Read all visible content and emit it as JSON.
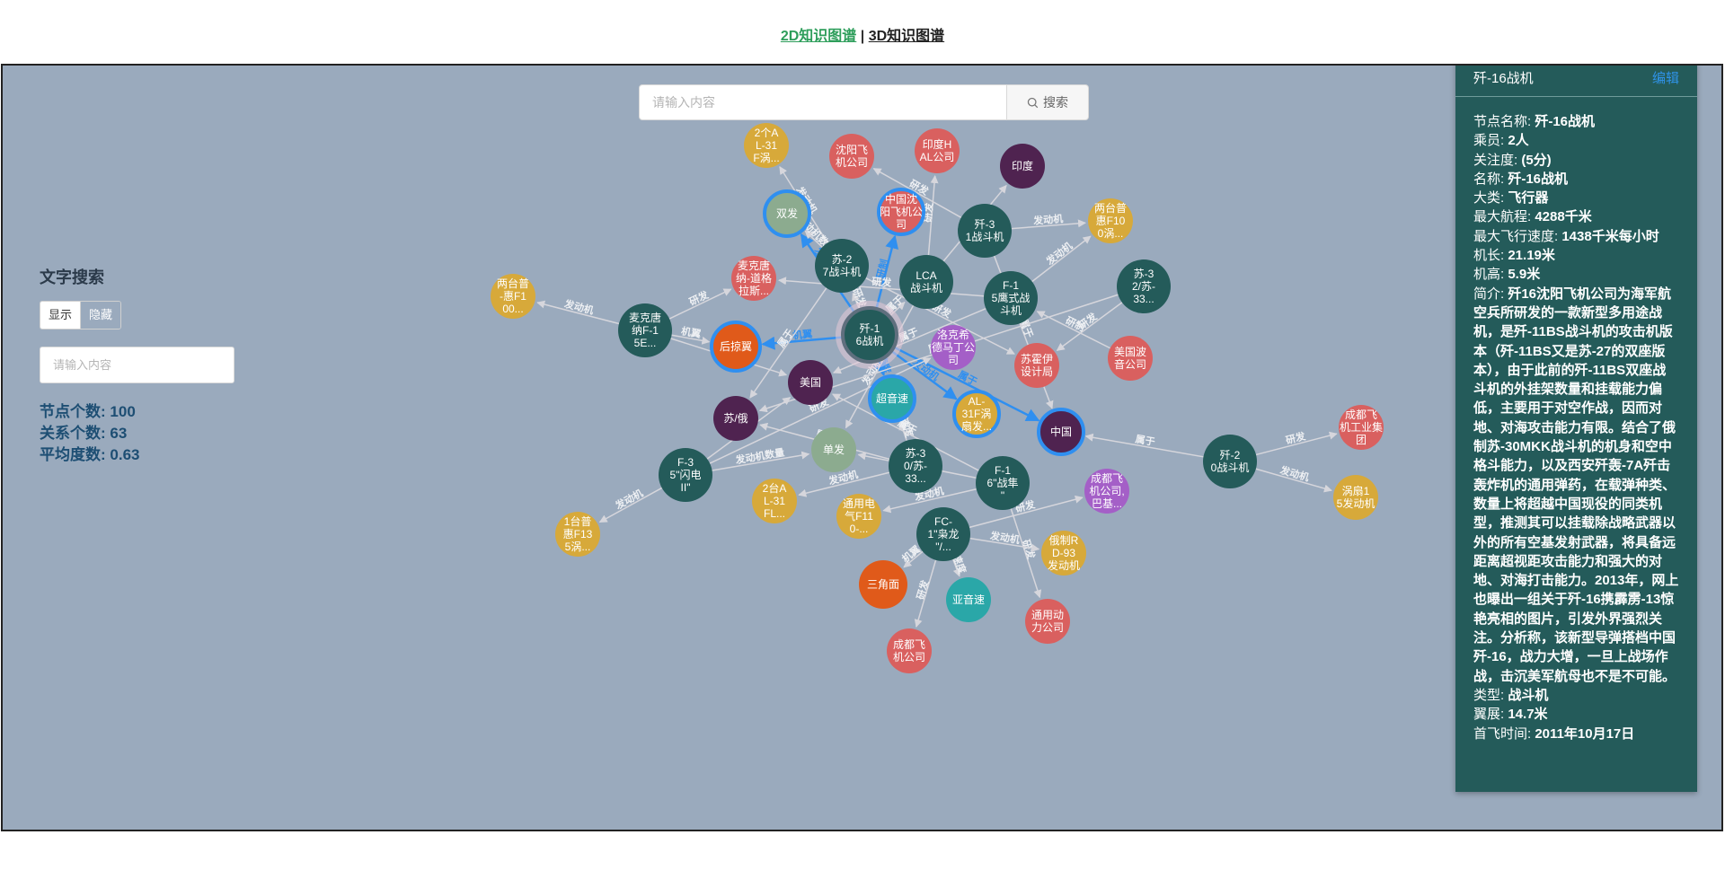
{
  "nav": {
    "link_2d": "2D知识图谱",
    "separator": " | ",
    "link_3d": "3D知识图谱"
  },
  "search": {
    "placeholder": "请输入内容",
    "button_label": "搜索",
    "icon": "search-icon"
  },
  "left_panel": {
    "title": "文字搜索",
    "show_label": "显示",
    "hide_label": "隐藏",
    "input_placeholder": "请输入内容",
    "stats": [
      {
        "label": "节点个数:",
        "value": "100"
      },
      {
        "label": "关系个数:",
        "value": "63"
      },
      {
        "label": "平均度数:",
        "value": "0.63"
      }
    ]
  },
  "info_panel": {
    "title": "歼-16战机",
    "edit_label": "编辑",
    "fields": [
      {
        "k": "节点名称:",
        "v": "歼-16战机"
      },
      {
        "k": "乘员:",
        "v": "2人"
      },
      {
        "k": "关注度:",
        "v": "(5分)"
      },
      {
        "k": "名称:",
        "v": "歼-16战机"
      },
      {
        "k": "大类:",
        "v": "飞行器"
      },
      {
        "k": "最大航程:",
        "v": "4288千米"
      },
      {
        "k": "最大飞行速度:",
        "v": "1438千米每小时"
      },
      {
        "k": "机长:",
        "v": "21.19米"
      },
      {
        "k": "机高:",
        "v": "5.9米"
      },
      {
        "k": "简介:",
        "v": "歼16沈阳飞机公司为海军航空兵所研发的一款新型多用途战机，是歼-11BS战斗机的攻击机版本（歼-11BS又是苏-27的双座版本），由于此前的歼-11BS双座战斗机的外挂架数量和挂载能力偏低，主要用于对空作战，因而对地、对海攻击能力有限。结合了俄制苏-30MKK战斗机的机身和空中格斗能力，以及西安歼轰-7A歼击轰炸机的通用弹药，在载弹种类、数量上将超越中国现役的同类机型，推测其可以挂载除战略武器以外的所有空基发射武器，将具备远距离超视距攻击能力和强大的对地、对海打击能力。2013年，网上也曝出一组关于歼-16携霹雳-13惊艳亮相的图片，引发外界强烈关注。分析称，该新型导弹搭档中国歼-16，战力大增，一旦上战场作战，击沉美军航母也不是不可能。"
      },
      {
        "k": "类型:",
        "v": "战斗机"
      },
      {
        "k": "翼展:",
        "v": "14.7米"
      },
      {
        "k": "首飞时间:",
        "v": "2011年10月17日"
      }
    ]
  },
  "colors": {
    "graph_bg": "#9aaabd",
    "aircraft": "#245b5a",
    "company": "#d9605f",
    "engine": "#d7a93a",
    "country": "#4f2350",
    "feature": "#8cab8f",
    "speed": "#2aa7a8",
    "wing": "#e05a1a",
    "type": "#a45fc7",
    "highlight": "#2f8ff0",
    "edge": "#d6d6dc",
    "panel": "#245b5a",
    "link_2d": "#2e9e5b",
    "edit": "#2f93e8"
  },
  "graph": {
    "nodes": [
      {
        "id": "j16",
        "label": "歼-1\n6战机",
        "type": "aircraft",
        "center": true
      },
      {
        "id": "j16b",
        "label": "中国沈\n阳飞机公\n司",
        "type": "company",
        "hl": true
      },
      {
        "id": "doublecrew",
        "label": "双发",
        "type": "feature",
        "hl": true
      },
      {
        "id": "su27",
        "label": "苏-2\n7战斗机",
        "type": "aircraft"
      },
      {
        "id": "lca",
        "label": "LCA\n战斗机",
        "type": "aircraft"
      },
      {
        "id": "j31",
        "label": "歼-3\n1战斗机",
        "type": "aircraft"
      },
      {
        "id": "f15",
        "label": "F-1\n5鹰式战\n斗机",
        "type": "aircraft"
      },
      {
        "id": "su32",
        "label": "苏-3\n2/苏-\n33...",
        "type": "aircraft"
      },
      {
        "id": "mcdonnell",
        "label": "麦克唐\n纳-道格\n拉斯...",
        "type": "company"
      },
      {
        "id": "mcdf15",
        "label": "麦克唐\n纳F-1\n5E...",
        "type": "aircraft"
      },
      {
        "id": "swept",
        "label": "后掠翼",
        "type": "wing",
        "hl": true
      },
      {
        "id": "usa",
        "label": "美国",
        "type": "country"
      },
      {
        "id": "supersonic",
        "label": "超音速",
        "type": "speed",
        "hl": true
      },
      {
        "id": "lockheed",
        "label": "洛克希\n德马丁公\n司",
        "type": "type"
      },
      {
        "id": "sukhoi",
        "label": "苏霍伊\n设计局",
        "type": "company"
      },
      {
        "id": "boeing",
        "label": "美国波\n音公司",
        "type": "company"
      },
      {
        "id": "al31",
        "label": "AL-\n31F涡\n扇发...",
        "type": "engine",
        "hl": true
      },
      {
        "id": "china",
        "label": "中国",
        "type": "country",
        "hl": true
      },
      {
        "id": "sov",
        "label": "苏/俄",
        "type": "country"
      },
      {
        "id": "single",
        "label": "单发",
        "type": "feature"
      },
      {
        "id": "su30",
        "label": "苏-3\n0/苏-\n33...",
        "type": "aircraft"
      },
      {
        "id": "f16",
        "label": "F-1\n6\"战隼\n\"",
        "type": "aircraft"
      },
      {
        "id": "chengdu1",
        "label": "成都飞\n机公司,\n巴基...",
        "type": "type"
      },
      {
        "id": "f35",
        "label": "F-3\n5\"闪电\nII\"",
        "type": "aircraft"
      },
      {
        "id": "al31fl",
        "label": "2台A\nL-31\nFL...",
        "type": "engine"
      },
      {
        "id": "ge110",
        "label": "通用电\n气F11\n0-...",
        "type": "engine"
      },
      {
        "id": "fc1",
        "label": "FC-\n1\"枭龙\n\"/...",
        "type": "aircraft"
      },
      {
        "id": "rd93",
        "label": "俄制R\nD-93\n发动机",
        "type": "engine"
      },
      {
        "id": "triangle",
        "label": "三角面",
        "type": "wing"
      },
      {
        "id": "subsonic",
        "label": "亚音速",
        "type": "speed"
      },
      {
        "id": "gepower",
        "label": "通用动\n力公司",
        "type": "company"
      },
      {
        "id": "chengdu2",
        "label": "成都飞\n机公司",
        "type": "company"
      },
      {
        "id": "pw135",
        "label": "1台普\n惠F13\n5涡...",
        "type": "engine"
      },
      {
        "id": "pw100",
        "label": "两台普\n-惠F1\n00...",
        "type": "engine"
      },
      {
        "id": "al31f2",
        "label": "2个A\nL-31\nF涡...",
        "type": "engine"
      },
      {
        "id": "shenyang",
        "label": "沈阳飞\n机公司",
        "type": "company"
      },
      {
        "id": "hal",
        "label": "印度H\nAL公司",
        "type": "company"
      },
      {
        "id": "india",
        "label": "印度",
        "type": "country"
      },
      {
        "id": "pwf100b",
        "label": "两台普\n惠F10\n0涡...",
        "type": "engine"
      },
      {
        "id": "j20",
        "label": "歼-2\n0战斗机",
        "type": "aircraft"
      },
      {
        "id": "chengdugroup",
        "label": "成都飞\n机工业集\n团",
        "type": "company"
      },
      {
        "id": "ws15",
        "label": "涡扇1\n5发动机",
        "type": "engine"
      }
    ],
    "edges": [
      {
        "from": "j16",
        "to": "j16b",
        "label": "研制",
        "hl": true
      },
      {
        "from": "j16",
        "to": "doublecrew",
        "label": "发动机数量",
        "hl": true
      },
      {
        "from": "j16",
        "to": "swept",
        "label": "机翼",
        "hl": true
      },
      {
        "from": "j16",
        "to": "supersonic",
        "label": "速度",
        "hl": true
      },
      {
        "from": "j16",
        "to": "al31",
        "label": "发动机",
        "hl": true
      },
      {
        "from": "j16",
        "to": "china",
        "label": "属于",
        "hl": true
      },
      {
        "from": "su27",
        "to": "sov",
        "label": "属于"
      },
      {
        "from": "su27",
        "to": "al31f2",
        "label": "发动机"
      },
      {
        "from": "su27",
        "to": "doublecrew",
        "label": "发动机数量"
      },
      {
        "from": "su27",
        "to": "sukhoi",
        "label": "研发"
      },
      {
        "from": "lca",
        "to": "hal",
        "label": "研发"
      },
      {
        "from": "lca",
        "to": "india",
        "label": "属于"
      },
      {
        "from": "lca",
        "to": "single",
        "label": "发动机数量"
      },
      {
        "from": "j31",
        "to": "shenyang",
        "label": "研发"
      },
      {
        "from": "j31",
        "to": "pwf100b",
        "label": "发动机"
      },
      {
        "from": "j31",
        "to": "china",
        "label": "属于"
      },
      {
        "from": "f15",
        "to": "mcdonnell",
        "label": "研发"
      },
      {
        "from": "f15",
        "to": "usa",
        "label": "属于"
      },
      {
        "from": "f15",
        "to": "pwf100b",
        "label": "发动机"
      },
      {
        "from": "su32",
        "to": "sukhoi",
        "label": "研发"
      },
      {
        "from": "su32",
        "to": "sov",
        "label": "属于"
      },
      {
        "from": "mcdf15",
        "to": "pw100",
        "label": "发动机"
      },
      {
        "from": "mcdf15",
        "to": "mcdonnell",
        "label": "研发"
      },
      {
        "from": "mcdf15",
        "to": "usa",
        "label": "属于"
      },
      {
        "from": "mcdf15",
        "to": "swept",
        "label": "机翼"
      },
      {
        "from": "f35",
        "to": "pw135",
        "label": "发动机"
      },
      {
        "from": "f35",
        "to": "single",
        "label": "发动机数量"
      },
      {
        "from": "f35",
        "to": "usa",
        "label": "属于"
      },
      {
        "from": "f35",
        "to": "lockheed",
        "label": "研发"
      },
      {
        "from": "su30",
        "to": "al31fl",
        "label": "发动机"
      },
      {
        "from": "su30",
        "to": "sov",
        "label": "属于"
      },
      {
        "from": "su30",
        "to": "supersonic",
        "label": "速度"
      },
      {
        "from": "f16",
        "to": "ge110",
        "label": "发动机"
      },
      {
        "from": "f16",
        "to": "gepower",
        "label": "研发"
      },
      {
        "from": "f16",
        "to": "usa",
        "label": "属于"
      },
      {
        "from": "f16",
        "to": "single",
        "label": "发动机数量"
      },
      {
        "from": "fc1",
        "to": "rd93",
        "label": "发动机"
      },
      {
        "from": "fc1",
        "to": "chengdu1",
        "label": "研发"
      },
      {
        "from": "fc1",
        "to": "subsonic",
        "label": "速度"
      },
      {
        "from": "fc1",
        "to": "triangle",
        "label": "机翼"
      },
      {
        "from": "fc1",
        "to": "chengdu2",
        "label": "研发"
      },
      {
        "from": "j20",
        "to": "chengdugroup",
        "label": "研发"
      },
      {
        "from": "j20",
        "to": "ws15",
        "label": "发动机"
      },
      {
        "from": "j20",
        "to": "china",
        "label": "属于"
      },
      {
        "from": "boeing",
        "to": "f15",
        "label": "研制"
      },
      {
        "from": "j16",
        "to": "su27",
        "label": "研发"
      },
      {
        "from": "j16",
        "to": "lca",
        "label": "属于"
      }
    ]
  }
}
